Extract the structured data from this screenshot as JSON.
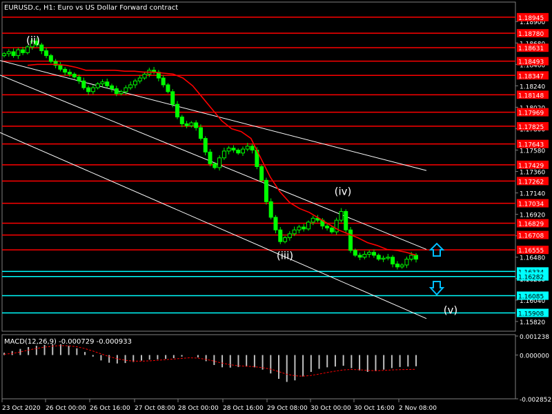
{
  "header": {
    "symbol_line": "EURUSD.c, H1:  Euro vs US Dollar Forward contract",
    "macd_label": "MACD(12,26,9) -0.000729 -0.000933"
  },
  "colors": {
    "background": "#000000",
    "candles": "#00ff00",
    "ma": "#ff0000",
    "resistance": "#ff0000",
    "support": "#00ffff",
    "channel": "#ffffff",
    "macd_hist": "#c0c0c0",
    "macd_signal": "#ff0000",
    "up_arrow": "#00bfff",
    "down_arrow": "#00bfff"
  },
  "chart_data": {
    "type": "candlestick",
    "title": "EURUSD.c, H1:  Euro vs US Dollar Forward contract",
    "y_ticks": [
      "1.18900",
      "1.18680",
      "1.18460",
      "1.18240",
      "1.18020",
      "1.17800",
      "1.17580",
      "1.17360",
      "1.17140",
      "1.16920",
      "1.16700",
      "1.16480",
      "1.16260",
      "1.16040",
      "1.15820"
    ],
    "ylim": [
      1.1572,
      1.191
    ],
    "x_ticks": [
      "23 Oct 2020",
      "26 Oct 00:00",
      "26 Oct 16:00",
      "27 Oct 08:00",
      "28 Oct 00:00",
      "28 Oct 16:00",
      "29 Oct 08:00",
      "30 Oct 00:00",
      "30 Oct 16:00",
      "2 Nov 08:00"
    ],
    "price_levels": [
      {
        "label": "1.18945",
        "value": 1.18945,
        "kind": "resistance"
      },
      {
        "label": "1.18780",
        "value": 1.1878,
        "kind": "resistance"
      },
      {
        "label": "1.18631",
        "value": 1.18631,
        "kind": "resistance"
      },
      {
        "label": "1.18493",
        "value": 1.18493,
        "kind": "resistance"
      },
      {
        "label": "1.18347",
        "value": 1.18347,
        "kind": "resistance"
      },
      {
        "label": "1.18148",
        "value": 1.18148,
        "kind": "resistance"
      },
      {
        "label": "1.17969",
        "value": 1.17969,
        "kind": "resistance"
      },
      {
        "label": "1.17825",
        "value": 1.17825,
        "kind": "resistance"
      },
      {
        "label": "1.17643",
        "value": 1.17643,
        "kind": "resistance"
      },
      {
        "label": "1.17429",
        "value": 1.17429,
        "kind": "resistance"
      },
      {
        "label": "1.17262",
        "value": 1.17262,
        "kind": "resistance"
      },
      {
        "label": "1.17034",
        "value": 1.17034,
        "kind": "resistance"
      },
      {
        "label": "1.16829",
        "value": 1.16829,
        "kind": "resistance"
      },
      {
        "label": "1.16708",
        "value": 1.16708,
        "kind": "resistance"
      },
      {
        "label": "1.16555",
        "value": 1.16555,
        "kind": "resistance"
      },
      {
        "label": "1.16334",
        "value": 1.16334,
        "kind": "support"
      },
      {
        "label": "1.16282",
        "value": 1.16282,
        "kind": "support"
      },
      {
        "label": "1.16085",
        "value": 1.16085,
        "kind": "support"
      },
      {
        "label": "1.15908",
        "value": 1.15908,
        "kind": "support"
      }
    ],
    "wave_labels": [
      {
        "text": "(ii)",
        "x": 48,
        "price": 1.1867
      },
      {
        "text": "(iii)",
        "x": 413,
        "price": 1.1646
      },
      {
        "text": "(iv)",
        "x": 497,
        "price": 1.1712
      },
      {
        "text": "(v)",
        "x": 653,
        "price": 1.159
      }
    ],
    "close_series": [
      1.1857,
      1.1859,
      1.1855,
      1.1861,
      1.1858,
      1.1864,
      1.187,
      1.1866,
      1.186,
      1.1855,
      1.1849,
      1.1845,
      1.1841,
      1.1838,
      1.1836,
      1.1833,
      1.1829,
      1.1822,
      1.1818,
      1.1822,
      1.1826,
      1.1828,
      1.1824,
      1.1821,
      1.1816,
      1.1818,
      1.1822,
      1.1825,
      1.1829,
      1.1832,
      1.1836,
      1.184,
      1.1838,
      1.1832,
      1.1825,
      1.1818,
      1.1805,
      1.1792,
      1.1785,
      1.1783,
      1.1786,
      1.1781,
      1.177,
      1.1756,
      1.1744,
      1.174,
      1.175,
      1.1757,
      1.176,
      1.1758,
      1.1755,
      1.1759,
      1.1762,
      1.1758,
      1.1741,
      1.1727,
      1.1705,
      1.1689,
      1.1676,
      1.1664,
      1.1668,
      1.1672,
      1.1676,
      1.1679,
      1.1677,
      1.1684,
      1.1688,
      1.1686,
      1.168,
      1.1678,
      1.1674,
      1.1686,
      1.1695,
      1.1676,
      1.1655,
      1.165,
      1.1648,
      1.1651,
      1.1653,
      1.165,
      1.1646,
      1.1647,
      1.1648,
      1.1641,
      1.1638,
      1.164,
      1.1646,
      1.165,
      1.1646
    ],
    "ma_series": [
      1.1845,
      1.1846,
      1.1846,
      1.1846,
      1.1845,
      1.1843,
      1.184,
      1.184,
      1.184,
      1.184,
      1.1839,
      1.1839,
      1.1838,
      1.1838,
      1.1837,
      1.1836,
      1.1832,
      1.1824,
      1.1812,
      1.18,
      1.1788,
      1.178,
      1.1777,
      1.177,
      1.175,
      1.173,
      1.1715,
      1.1704,
      1.1698,
      1.1694,
      1.1688,
      1.1682,
      1.1676,
      1.1672,
      1.1668,
      1.1663,
      1.166,
      1.1656,
      1.1655,
      1.1653,
      1.165
    ],
    "channels": [
      {
        "name": "upper",
        "from": [
          0,
          1.185
        ],
        "to": [
          618,
          1.1737
        ]
      },
      {
        "name": "middle",
        "from": [
          0,
          1.1835
        ],
        "to": [
          618,
          1.1656
        ]
      },
      {
        "name": "lower",
        "from": [
          0,
          1.1776
        ],
        "to": [
          618,
          1.1585
        ]
      }
    ],
    "macd": {
      "y_ticks": [
        "0.001238",
        "0.000000",
        "-0.002852"
      ],
      "ylim": [
        -0.002852,
        0.001238
      ],
      "histogram": [
        0.00015,
        0.00026,
        0.0004,
        0.00052,
        0.0006,
        0.00066,
        0.00072,
        0.0007,
        0.0006,
        0.00044,
        0.0002,
        -0.0001,
        -0.00035,
        -0.0005,
        -0.00055,
        -0.00052,
        -0.00045,
        -0.00036,
        -0.0003,
        -0.00028,
        -0.00025,
        -0.0002,
        -0.0001,
        0.0,
        -0.00015,
        -0.0004,
        -0.00065,
        -0.0008,
        -0.00082,
        -0.00078,
        -0.00075,
        -0.0008,
        -0.00095,
        -0.0012,
        -0.00155,
        -0.00175,
        -0.00165,
        -0.0014,
        -0.0011,
        -0.0009,
        -0.0008,
        -0.00075,
        -0.0007,
        -0.00085,
        -0.001,
        -0.0011,
        -0.00105,
        -0.00095,
        -0.00085,
        -0.00078,
        -0.00075,
        -0.00073
      ],
      "signal": [
        5e-05,
        0.0001,
        0.0002,
        0.00032,
        0.00043,
        0.00052,
        0.00058,
        0.00062,
        0.0006,
        0.00054,
        0.00042,
        0.00026,
        8e-05,
        -0.0001,
        -0.00024,
        -0.00034,
        -0.0004,
        -0.0004,
        -0.00038,
        -0.00034,
        -0.0003,
        -0.00026,
        -0.00022,
        -0.00018,
        -0.0002,
        -0.00028,
        -0.0004,
        -0.00053,
        -0.00063,
        -0.0007,
        -0.00073,
        -0.00076,
        -0.00082,
        -0.00092,
        -0.00108,
        -0.00125,
        -0.00135,
        -0.00138,
        -0.00133,
        -0.00124,
        -0.00114,
        -0.00105,
        -0.00097,
        -0.00094,
        -0.00096,
        -0.001,
        -0.00102,
        -0.001,
        -0.00097,
        -0.00095,
        -0.00094,
        -0.00093
      ]
    }
  }
}
